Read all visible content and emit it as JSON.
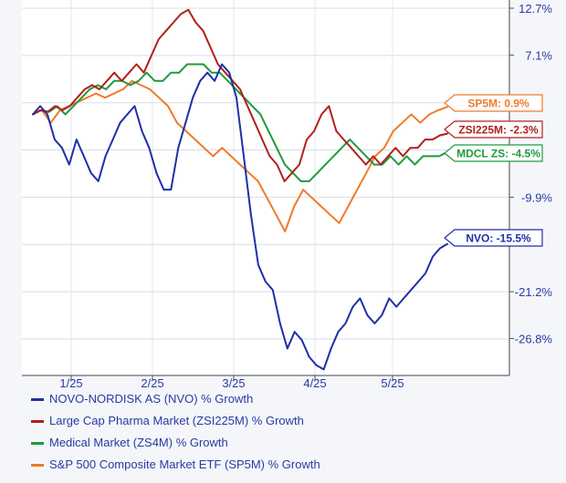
{
  "chart_data": {
    "type": "line",
    "x_tick_labels": [
      "1/25",
      "2/25",
      "3/25",
      "4/25",
      "5/25"
    ],
    "y_tick_labels": [
      "12.7%",
      "7.1%",
      "-9.9%",
      "-21.2%",
      "-26.8%"
    ],
    "y_range": [
      -31,
      12.7
    ],
    "grid": true,
    "legend_placement": "bottom",
    "series": [
      {
        "name": "NOVO-NORDISK AS (NVO) % Growth",
        "color": "#1f2fa8",
        "end_label": "NVO: -15.5%",
        "values": [
          0,
          1,
          0,
          -3,
          -4,
          -6,
          -3,
          -5,
          -7,
          -8,
          -5,
          -3,
          -1,
          0,
          1,
          -2,
          -4,
          -7,
          -9,
          -9,
          -4,
          -1,
          2,
          4,
          5,
          4,
          6,
          5,
          2,
          -5,
          -12,
          -18,
          -20,
          -21,
          -25,
          -28,
          -26,
          -27,
          -29,
          -30,
          -30.5,
          -28,
          -26,
          -25,
          -23,
          -22,
          -24,
          -25,
          -24,
          -22,
          -23,
          -22,
          -21,
          -20,
          -19,
          -17,
          -16,
          -15.5
        ]
      },
      {
        "name": "Large Cap Pharma Market (ZSI225M) % Growth",
        "color": "#b0201c",
        "end_label": "ZSI225M: -2.3%",
        "values": [
          0,
          0.5,
          0.3,
          1,
          0.5,
          1,
          2,
          3,
          3.5,
          3,
          4,
          5,
          4,
          5,
          6,
          5,
          7,
          9,
          10,
          11,
          12,
          12.5,
          11,
          10,
          8,
          6,
          5,
          4,
          3,
          1,
          -1,
          -3,
          -5,
          -6,
          -8,
          -7,
          -6,
          -3,
          -2,
          0,
          1,
          -2,
          -3,
          -4,
          -5,
          -6,
          -5,
          -6,
          -5,
          -4,
          -5,
          -4,
          -4,
          -3,
          -3,
          -2.5,
          -2.3
        ]
      },
      {
        "name": "Medical Market (ZS4M) % Growth",
        "color": "#1f9a3e",
        "end_label": "MDCL ZS: -4.5%",
        "values": [
          0,
          0.5,
          0.3,
          1,
          0,
          1,
          2,
          3,
          3.5,
          3,
          4,
          4,
          3.5,
          4,
          5,
          4,
          4,
          5,
          5,
          6,
          6,
          6,
          5,
          5,
          4,
          3,
          2,
          1,
          0,
          -2,
          -4,
          -6,
          -7,
          -8,
          -8,
          -7,
          -6,
          -5,
          -4,
          -3,
          -4,
          -5,
          -6,
          -6,
          -5,
          -6,
          -5,
          -6,
          -5,
          -5,
          -5,
          -4.5
        ]
      },
      {
        "name": "S&P 500 Composite Market ETF (SP5M) % Growth",
        "color": "#f07a28",
        "end_label": "SP5M: 0.9%",
        "values": [
          0,
          0.5,
          -1,
          0.5,
          1,
          1.5,
          2,
          2.5,
          2,
          2.5,
          3,
          4,
          3.5,
          3,
          2,
          1,
          -1,
          -2,
          -3,
          -4,
          -5,
          -4,
          -5,
          -6,
          -7,
          -8,
          -10,
          -12,
          -14,
          -11,
          -9,
          -10,
          -11,
          -12,
          -13,
          -11,
          -9,
          -7,
          -5,
          -4,
          -2,
          -1,
          0,
          -1,
          0,
          0.5,
          0.9
        ]
      }
    ]
  }
}
